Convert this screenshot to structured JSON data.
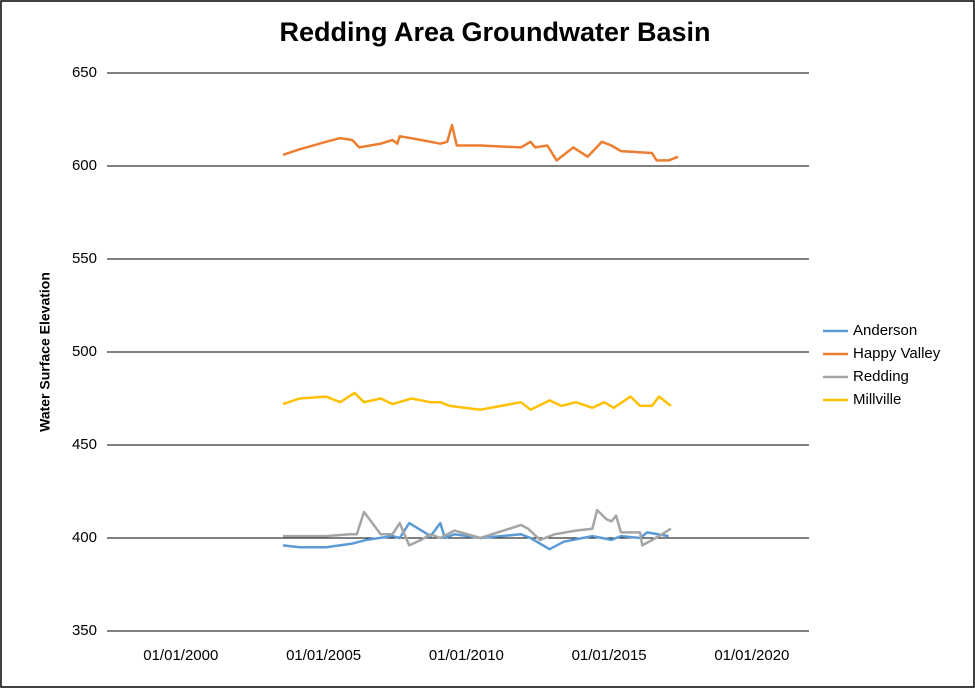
{
  "chart_data": {
    "type": "line",
    "title": "Redding Area Groundwater Basin",
    "y_label": "Water Surface Elevation",
    "xlim": [
      "1997-06",
      "2022-01"
    ],
    "xticks": [
      {
        "value": "2000-01-01",
        "label": "01/01/2000"
      },
      {
        "value": "2005-01-01",
        "label": "01/01/2005"
      },
      {
        "value": "2010-01-01",
        "label": "01/01/2010"
      },
      {
        "value": "2015-01-01",
        "label": "01/01/2015"
      },
      {
        "value": "2020-01-01",
        "label": "01/01/2020"
      }
    ],
    "ylim": [
      350,
      650
    ],
    "yticks": [
      350,
      400,
      450,
      500,
      550,
      600,
      650
    ],
    "grid": true,
    "legend": "right",
    "series": [
      {
        "name": "Anderson",
        "color": "#5b9bd5",
        "x": [
          "2003-08",
          "2004-03",
          "2005-02",
          "2006-01",
          "2006-07",
          "2007-06",
          "2007-09",
          "2008-01",
          "2008-10",
          "2009-02",
          "2009-04",
          "2009-08",
          "2010-07",
          "2011-12",
          "2012-04",
          "2012-12",
          "2013-06",
          "2014-06",
          "2015-02",
          "2015-06",
          "2016-02",
          "2016-05",
          "2017-02"
        ],
        "values": [
          396,
          395,
          395,
          397,
          399,
          401,
          400,
          408,
          401,
          408,
          400,
          402,
          400,
          402,
          400,
          394,
          398,
          401,
          399,
          401,
          400,
          403,
          401
        ]
      },
      {
        "name": "Happy Valley",
        "color": "#ed7d31",
        "x": [
          "2003-08",
          "2004-03",
          "2005-02",
          "2005-08",
          "2006-01",
          "2006-04",
          "2007-01",
          "2007-06",
          "2007-08",
          "2007-09",
          "2008-06",
          "2009-02",
          "2009-05",
          "2009-07",
          "2009-09",
          "2010-07",
          "2011-12",
          "2012-04",
          "2012-06",
          "2012-11",
          "2013-03",
          "2013-10",
          "2014-04",
          "2014-10",
          "2015-02",
          "2015-06",
          "2016-07",
          "2016-09",
          "2017-02",
          "2017-06"
        ],
        "values": [
          606,
          609,
          613,
          615,
          614,
          610,
          612,
          614,
          612,
          616,
          614,
          612,
          613,
          622,
          611,
          611,
          610,
          613,
          610,
          611,
          603,
          610,
          605,
          613,
          611,
          608,
          607,
          603,
          603,
          605
        ]
      },
      {
        "name": "Redding",
        "color": "#a5a5a5",
        "x": [
          "2003-08",
          "2005-02",
          "2005-12",
          "2006-03",
          "2006-06",
          "2007-01",
          "2007-06",
          "2007-09",
          "2008-01",
          "2008-06",
          "2008-10",
          "2009-02",
          "2009-08",
          "2010-07",
          "2011-12",
          "2012-03",
          "2012-08",
          "2013-02",
          "2013-11",
          "2014-06",
          "2014-08",
          "2014-12",
          "2015-02",
          "2015-04",
          "2015-06",
          "2016-02",
          "2016-03",
          "2016-10",
          "2017-03"
        ],
        "values": [
          401,
          401,
          402,
          402,
          414,
          402,
          402,
          408,
          396,
          399,
          402,
          400,
          404,
          400,
          407,
          405,
          399,
          402,
          404,
          405,
          415,
          410,
          409,
          412,
          403,
          403,
          396,
          401,
          405
        ]
      },
      {
        "name": "Millville",
        "color": "#ffc000",
        "x": [
          "2003-08",
          "2004-03",
          "2005-02",
          "2005-08",
          "2006-02",
          "2006-06",
          "2007-01",
          "2007-06",
          "2008-02",
          "2008-10",
          "2009-02",
          "2009-06",
          "2010-07",
          "2011-12",
          "2012-04",
          "2012-12",
          "2013-05",
          "2013-11",
          "2014-06",
          "2014-11",
          "2015-03",
          "2015-10",
          "2016-02",
          "2016-07",
          "2016-10",
          "2017-03"
        ],
        "values": [
          472,
          475,
          476,
          473,
          478,
          473,
          475,
          472,
          475,
          473,
          473,
          471,
          469,
          473,
          469,
          474,
          471,
          473,
          470,
          473,
          470,
          476,
          471,
          471,
          476,
          471
        ]
      }
    ]
  }
}
